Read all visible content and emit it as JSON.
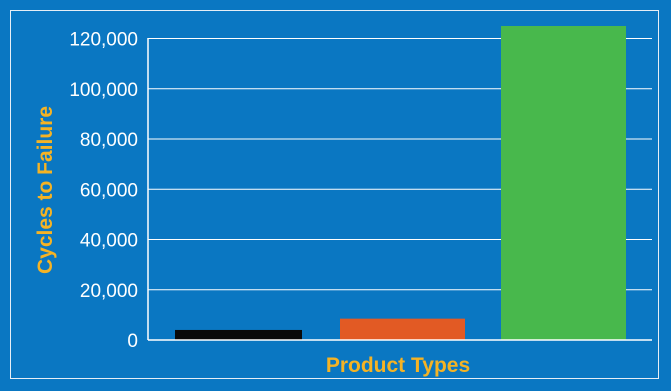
{
  "chart_data": {
    "type": "bar",
    "title": "",
    "xlabel": "Product Types",
    "ylabel": "Cycles to Failure",
    "ylim": [
      0,
      125000
    ],
    "yticks": [
      0,
      20000,
      40000,
      60000,
      80000,
      100000,
      120000
    ],
    "ytick_labels": [
      "0",
      "20,000",
      "40,000",
      "60,000",
      "80,000",
      "100,000",
      "120,000"
    ],
    "grid": true,
    "categories": [
      "",
      "",
      ""
    ],
    "values": [
      4000,
      8500,
      130000
    ],
    "colors": [
      "#0a0a0a",
      "#e25a24",
      "#48b84c"
    ]
  },
  "colors": {
    "background": "#0a77c2",
    "gridline": "#ffffff",
    "axis_title": "#f5b324"
  }
}
